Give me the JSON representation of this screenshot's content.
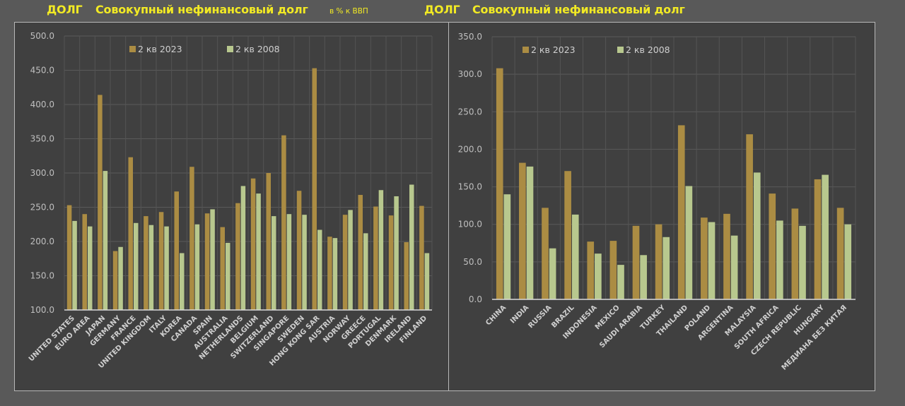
{
  "header_left": {
    "tag": "ДОЛГ",
    "title": "Совокупный нефинансовый долг",
    "unit": "в % к ВВП"
  },
  "header_right": {
    "tag": "ДОЛГ",
    "title": "Совокупный нефинансовый долг"
  },
  "colors": {
    "series_2023": "#ab8c43",
    "series_2008": "#b8c88e",
    "title": "#f2ea24",
    "panel": "#404040",
    "background": "#595959"
  },
  "chart_data": [
    {
      "type": "bar",
      "title": "Совокупный нефинансовый долг",
      "xlabel": "",
      "ylabel": "",
      "ylim": [
        100,
        500
      ],
      "yticks": [
        "500.0",
        "450.0",
        "400.0",
        "350.0",
        "300.0",
        "250.0",
        "200.0",
        "150.0",
        "100.0"
      ],
      "yticks_values": [
        500,
        450,
        400,
        350,
        300,
        250,
        200,
        150,
        100
      ],
      "grid": true,
      "legend": "top-center",
      "categories": [
        "UNITED STATES",
        "EURO AREA",
        "JAPAN",
        "GERMANY",
        "FRANCE",
        "UNITED KINGDOM",
        "ITALY",
        "KOREA",
        "CANADA",
        "SPAIN",
        "AUSTRALIA",
        "NETHERLANDS",
        "BELGIUM",
        "SWITZERLAND",
        "SINGAPORE",
        "SWEDEN",
        "HONG KONG SAR",
        "AUSTRIA",
        "NORWAY",
        "GREECE",
        "PORTUGAL",
        "DENMARK",
        "IRELAND",
        "FINLAND"
      ],
      "series": [
        {
          "name": "2 кв 2023",
          "values": [
            253,
            240,
            414,
            186,
            323,
            237,
            243,
            273,
            309,
            241,
            221,
            256,
            292,
            300,
            355,
            274,
            453,
            207,
            239,
            268,
            251,
            238,
            199,
            252
          ]
        },
        {
          "name": "2 кв 2008",
          "values": [
            230,
            222,
            303,
            192,
            227,
            224,
            222,
            183,
            225,
            247,
            198,
            281,
            270,
            237,
            240,
            239,
            217,
            205,
            246,
            212,
            275,
            266,
            283,
            183
          ]
        }
      ]
    },
    {
      "type": "bar",
      "title": "Совокупный нефинансовый долг",
      "xlabel": "",
      "ylabel": "",
      "ylim": [
        0,
        350
      ],
      "yticks": [
        "350.0",
        "300.0",
        "250.0",
        "200.0",
        "150.0",
        "100.0",
        "50.0",
        "0.0"
      ],
      "yticks_values": [
        350,
        300,
        250,
        200,
        150,
        100,
        50,
        0
      ],
      "grid": true,
      "legend": "top-center",
      "categories": [
        "CHINA",
        "INDIA",
        "RUSSIA",
        "BRAZIL",
        "INDONESIA",
        "MEXICO",
        "SAUDI ARABIA",
        "TURKEY",
        "THAILAND",
        "POLAND",
        "ARGENTINA",
        "MALAYSIA",
        "SOUTH AFRICA",
        "CZECH REPUBLIC",
        "HUNGARY",
        "МЕДИАНА БЕЗ КИТАЯ"
      ],
      "series": [
        {
          "name": "2 кв 2023",
          "values": [
            308,
            182,
            122,
            171,
            77,
            78,
            98,
            100,
            232,
            109,
            114,
            220,
            141,
            121,
            160,
            122
          ]
        },
        {
          "name": "2 кв 2008",
          "values": [
            140,
            177,
            68,
            113,
            61,
            46,
            59,
            83,
            151,
            103,
            85,
            169,
            105,
            98,
            166,
            100
          ]
        }
      ]
    }
  ]
}
